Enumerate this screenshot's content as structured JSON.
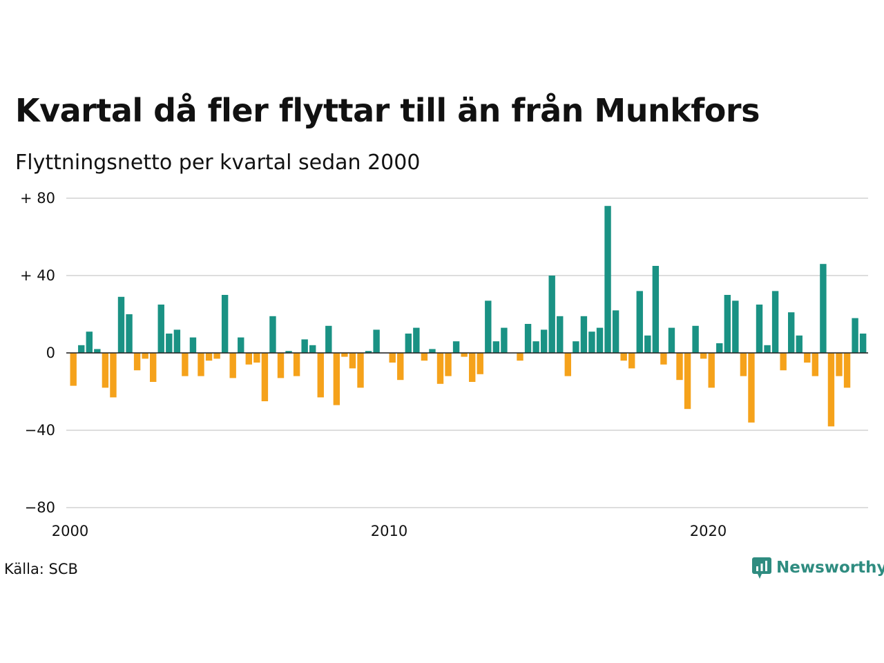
{
  "header": {
    "title": "Kvartal då fler flyttar till än från Munkfors",
    "subtitle": "Flyttningsnetto per kvartal sedan 2000"
  },
  "footer": {
    "source": "Källa: SCB",
    "brand": "Newsworthy"
  },
  "colors": {
    "positive": "#1a9284",
    "negative": "#f5a21b",
    "grid": "#dddddd",
    "brand": "#2f8c80"
  },
  "chart_data": {
    "type": "bar",
    "title": "Kvartal då fler flyttar till än från Munkfors",
    "subtitle": "Flyttningsnetto per kvartal sedan 2000",
    "xlabel": "",
    "ylabel": "",
    "ylim": [
      -80,
      80
    ],
    "y_ticks": [
      {
        "value": 80,
        "label": "+ 80"
      },
      {
        "value": 40,
        "label": "+ 40"
      },
      {
        "value": 0,
        "label": "0"
      },
      {
        "value": -40,
        "label": "−40"
      },
      {
        "value": -80,
        "label": "−80"
      }
    ],
    "x_ticks": [
      "2000",
      "2010",
      "2020"
    ],
    "grid": true,
    "legend": "none",
    "start_period": "2000 Q1",
    "values": [
      -17,
      4,
      11,
      2,
      -18,
      -23,
      29,
      20,
      -9,
      -3,
      -15,
      25,
      10,
      12,
      -12,
      8,
      -12,
      -4,
      -3,
      30,
      -13,
      8,
      -6,
      -5,
      -25,
      19,
      -13,
      1,
      -12,
      7,
      4,
      -23,
      14,
      -27,
      -2,
      -8,
      -18,
      1,
      12,
      0,
      -5,
      -14,
      10,
      13,
      -4,
      2,
      -16,
      -12,
      6,
      -2,
      -15,
      -11,
      27,
      6,
      13,
      0,
      -4,
      15,
      6,
      12,
      40,
      19,
      -12,
      6,
      19,
      11,
      13,
      76,
      22,
      -4,
      -8,
      32,
      9,
      45,
      -6,
      13,
      -14,
      -29,
      14,
      -3,
      -18,
      5,
      30,
      27,
      -12,
      -36,
      25,
      4,
      32,
      -9,
      21,
      9,
      -5,
      -12,
      46,
      -38,
      -12,
      -18,
      18,
      10
    ]
  }
}
